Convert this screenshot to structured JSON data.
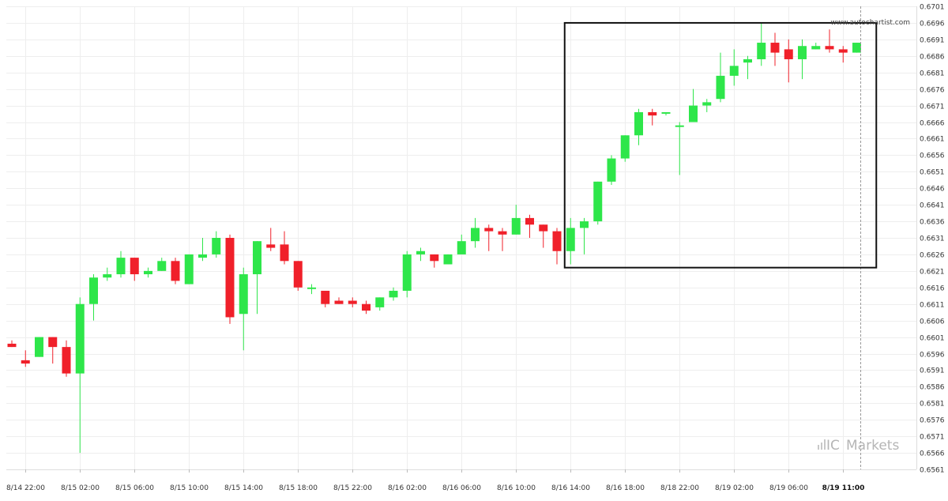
{
  "source_label": "www.autochartist.com",
  "brand": {
    "prefix": "IC",
    "name": "Markets"
  },
  "colors": {
    "bull": "#2ee64a",
    "bear": "#f0202a",
    "pattern_box": "#111111",
    "grid": "#eeeeee",
    "now_line": "#999999"
  },
  "chart_data": {
    "type": "candlestick",
    "title": "",
    "xlabel": "",
    "ylabel": "",
    "ylim": [
      0.6561,
      0.6701
    ],
    "y_ticks": [
      "0.6701",
      "0.6696",
      "0.6691",
      "0.6686",
      "0.6681",
      "0.6676",
      "0.6671",
      "0.6666",
      "0.6661",
      "0.6656",
      "0.6651",
      "0.6646",
      "0.6641",
      "0.6636",
      "0.6631",
      "0.6626",
      "0.6621",
      "0.6616",
      "0.6611",
      "0.6606",
      "0.6601",
      "0.6596",
      "0.6591",
      "0.6586",
      "0.6581",
      "0.6576",
      "0.6571",
      "0.6566",
      "0.6561"
    ],
    "x_ticks": [
      {
        "index": 1,
        "label": "8/14 22:00"
      },
      {
        "index": 5,
        "label": "8/15 02:00"
      },
      {
        "index": 9,
        "label": "8/15 06:00"
      },
      {
        "index": 13,
        "label": "8/15 10:00"
      },
      {
        "index": 17,
        "label": "8/15 14:00"
      },
      {
        "index": 21,
        "label": "8/15 18:00"
      },
      {
        "index": 25,
        "label": "8/15 22:00"
      },
      {
        "index": 29,
        "label": "8/16 02:00"
      },
      {
        "index": 33,
        "label": "8/16 06:00"
      },
      {
        "index": 37,
        "label": "8/16 10:00"
      },
      {
        "index": 41,
        "label": "8/16 14:00"
      },
      {
        "index": 45,
        "label": "8/16 18:00"
      },
      {
        "index": 49,
        "label": "8/18 22:00"
      },
      {
        "index": 53,
        "label": "8/19 02:00"
      },
      {
        "index": 57,
        "label": "8/19 06:00"
      },
      {
        "index": 61,
        "label": "8/19 11:00",
        "bold": true
      }
    ],
    "candles": [
      {
        "o": 0.6599,
        "h": 0.66,
        "l": 0.6598,
        "c": 0.6598
      },
      {
        "o": 0.6594,
        "h": 0.6597,
        "l": 0.6592,
        "c": 0.6593
      },
      {
        "o": 0.6595,
        "h": 0.6601,
        "l": 0.6595,
        "c": 0.6601
      },
      {
        "o": 0.6601,
        "h": 0.6601,
        "l": 0.6593,
        "c": 0.6598
      },
      {
        "o": 0.6598,
        "h": 0.66,
        "l": 0.6589,
        "c": 0.659
      },
      {
        "o": 0.659,
        "h": 0.6613,
        "l": 0.6566,
        "c": 0.6611
      },
      {
        "o": 0.6611,
        "h": 0.662,
        "l": 0.6606,
        "c": 0.6619
      },
      {
        "o": 0.6619,
        "h": 0.6622,
        "l": 0.6618,
        "c": 0.662
      },
      {
        "o": 0.662,
        "h": 0.6627,
        "l": 0.6619,
        "c": 0.6625
      },
      {
        "o": 0.6625,
        "h": 0.6625,
        "l": 0.6618,
        "c": 0.662
      },
      {
        "o": 0.662,
        "h": 0.6622,
        "l": 0.6619,
        "c": 0.6621
      },
      {
        "o": 0.6621,
        "h": 0.6625,
        "l": 0.6621,
        "c": 0.6624
      },
      {
        "o": 0.6624,
        "h": 0.6625,
        "l": 0.6617,
        "c": 0.6618
      },
      {
        "o": 0.6617,
        "h": 0.6626,
        "l": 0.6617,
        "c": 0.6626
      },
      {
        "o": 0.6625,
        "h": 0.6631,
        "l": 0.6624,
        "c": 0.6626
      },
      {
        "o": 0.6626,
        "h": 0.6633,
        "l": 0.6625,
        "c": 0.6631
      },
      {
        "o": 0.6631,
        "h": 0.6632,
        "l": 0.6605,
        "c": 0.6607
      },
      {
        "o": 0.6608,
        "h": 0.6622,
        "l": 0.6597,
        "c": 0.662
      },
      {
        "o": 0.662,
        "h": 0.663,
        "l": 0.6608,
        "c": 0.663
      },
      {
        "o": 0.6629,
        "h": 0.6634,
        "l": 0.6627,
        "c": 0.6628
      },
      {
        "o": 0.6629,
        "h": 0.6633,
        "l": 0.6623,
        "c": 0.6624
      },
      {
        "o": 0.6624,
        "h": 0.6624,
        "l": 0.6615,
        "c": 0.6616
      },
      {
        "o": 0.6616,
        "h": 0.6617,
        "l": 0.6614,
        "c": 0.6616
      },
      {
        "o": 0.6615,
        "h": 0.6615,
        "l": 0.661,
        "c": 0.6611
      },
      {
        "o": 0.6612,
        "h": 0.6613,
        "l": 0.6611,
        "c": 0.6611
      },
      {
        "o": 0.6612,
        "h": 0.6613,
        "l": 0.661,
        "c": 0.6611
      },
      {
        "o": 0.6611,
        "h": 0.6612,
        "l": 0.6608,
        "c": 0.6609
      },
      {
        "o": 0.661,
        "h": 0.6613,
        "l": 0.6609,
        "c": 0.6613
      },
      {
        "o": 0.6613,
        "h": 0.6616,
        "l": 0.6612,
        "c": 0.6615
      },
      {
        "o": 0.6615,
        "h": 0.6627,
        "l": 0.6613,
        "c": 0.6626
      },
      {
        "o": 0.6626,
        "h": 0.6628,
        "l": 0.6624,
        "c": 0.6627
      },
      {
        "o": 0.6626,
        "h": 0.6626,
        "l": 0.6622,
        "c": 0.6624
      },
      {
        "o": 0.6623,
        "h": 0.6626,
        "l": 0.6623,
        "c": 0.6626
      },
      {
        "o": 0.6626,
        "h": 0.6632,
        "l": 0.6626,
        "c": 0.663
      },
      {
        "o": 0.663,
        "h": 0.6637,
        "l": 0.6628,
        "c": 0.6634
      },
      {
        "o": 0.6634,
        "h": 0.6635,
        "l": 0.6627,
        "c": 0.6633
      },
      {
        "o": 0.6633,
        "h": 0.6634,
        "l": 0.6627,
        "c": 0.6632
      },
      {
        "o": 0.6632,
        "h": 0.6641,
        "l": 0.6632,
        "c": 0.6637
      },
      {
        "o": 0.6637,
        "h": 0.6638,
        "l": 0.6631,
        "c": 0.6635
      },
      {
        "o": 0.6635,
        "h": 0.6635,
        "l": 0.6628,
        "c": 0.6633
      },
      {
        "o": 0.6633,
        "h": 0.6634,
        "l": 0.6623,
        "c": 0.6627
      },
      {
        "o": 0.6627,
        "h": 0.6637,
        "l": 0.6623,
        "c": 0.6634
      },
      {
        "o": 0.6634,
        "h": 0.6637,
        "l": 0.6626,
        "c": 0.6636
      },
      {
        "o": 0.6636,
        "h": 0.6648,
        "l": 0.6635,
        "c": 0.6648
      },
      {
        "o": 0.6648,
        "h": 0.6656,
        "l": 0.6647,
        "c": 0.6655
      },
      {
        "o": 0.6655,
        "h": 0.6662,
        "l": 0.6654,
        "c": 0.6662
      },
      {
        "o": 0.6662,
        "h": 0.667,
        "l": 0.6659,
        "c": 0.6669
      },
      {
        "o": 0.6669,
        "h": 0.667,
        "l": 0.6665,
        "c": 0.6668
      },
      {
        "o": 0.6669,
        "h": 0.6669,
        "l": 0.6668,
        "c": 0.6669
      },
      {
        "o": 0.6665,
        "h": 0.6666,
        "l": 0.665,
        "c": 0.6665
      },
      {
        "o": 0.6666,
        "h": 0.6676,
        "l": 0.6666,
        "c": 0.6671
      },
      {
        "o": 0.6671,
        "h": 0.6673,
        "l": 0.6669,
        "c": 0.6672
      },
      {
        "o": 0.6673,
        "h": 0.6687,
        "l": 0.6672,
        "c": 0.668
      },
      {
        "o": 0.668,
        "h": 0.6688,
        "l": 0.6677,
        "c": 0.6683
      },
      {
        "o": 0.6684,
        "h": 0.6686,
        "l": 0.6679,
        "c": 0.6685
      },
      {
        "o": 0.6685,
        "h": 0.6696,
        "l": 0.6683,
        "c": 0.669
      },
      {
        "o": 0.669,
        "h": 0.6693,
        "l": 0.6683,
        "c": 0.6687
      },
      {
        "o": 0.6688,
        "h": 0.6691,
        "l": 0.6678,
        "c": 0.6685
      },
      {
        "o": 0.6685,
        "h": 0.6691,
        "l": 0.6679,
        "c": 0.6689
      },
      {
        "o": 0.6688,
        "h": 0.669,
        "l": 0.6688,
        "c": 0.6689
      },
      {
        "o": 0.6689,
        "h": 0.6694,
        "l": 0.6687,
        "c": 0.6688
      },
      {
        "o": 0.6688,
        "h": 0.6689,
        "l": 0.6684,
        "c": 0.6687
      },
      {
        "o": 0.6687,
        "h": 0.669,
        "l": 0.6687,
        "c": 0.669
      }
    ],
    "pattern_box": {
      "index_start": 41,
      "index_end": 63,
      "price_high": 0.6696,
      "price_low": 0.6622
    },
    "grid": true,
    "y_axis_side": "right"
  }
}
